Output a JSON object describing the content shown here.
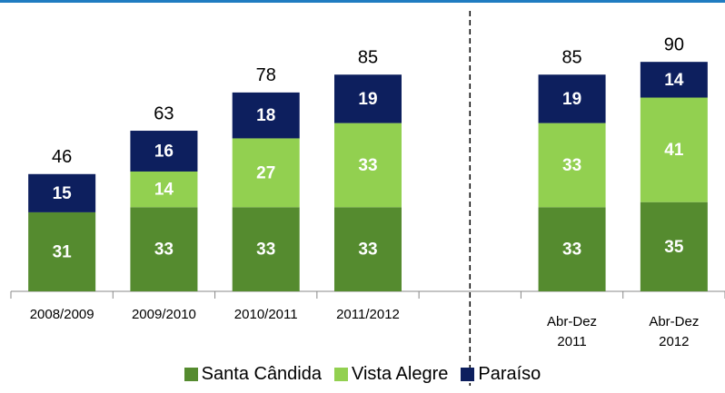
{
  "chart_data": {
    "type": "stacked_bar",
    "categories": [
      "2008/2009",
      "2009/2010",
      "2010/2011",
      "2011/2012",
      null,
      "Abr-Dez\n2011",
      "Abr-Dez\n2012"
    ],
    "series": [
      {
        "name": "Santa Cândida",
        "color": "#558b2f",
        "values": [
          31,
          33,
          33,
          33,
          null,
          33,
          35
        ]
      },
      {
        "name": "Vista Alegre",
        "color": "#92d050",
        "values": [
          null,
          14,
          27,
          33,
          null,
          33,
          41
        ]
      },
      {
        "name": "Paraíso",
        "color": "#0d1f5e",
        "values": [
          15,
          16,
          18,
          19,
          null,
          19,
          14
        ]
      }
    ],
    "totals": [
      46,
      63,
      78,
      85,
      null,
      85,
      90
    ],
    "ylim": [
      0,
      110
    ],
    "legend": "bottom"
  }
}
